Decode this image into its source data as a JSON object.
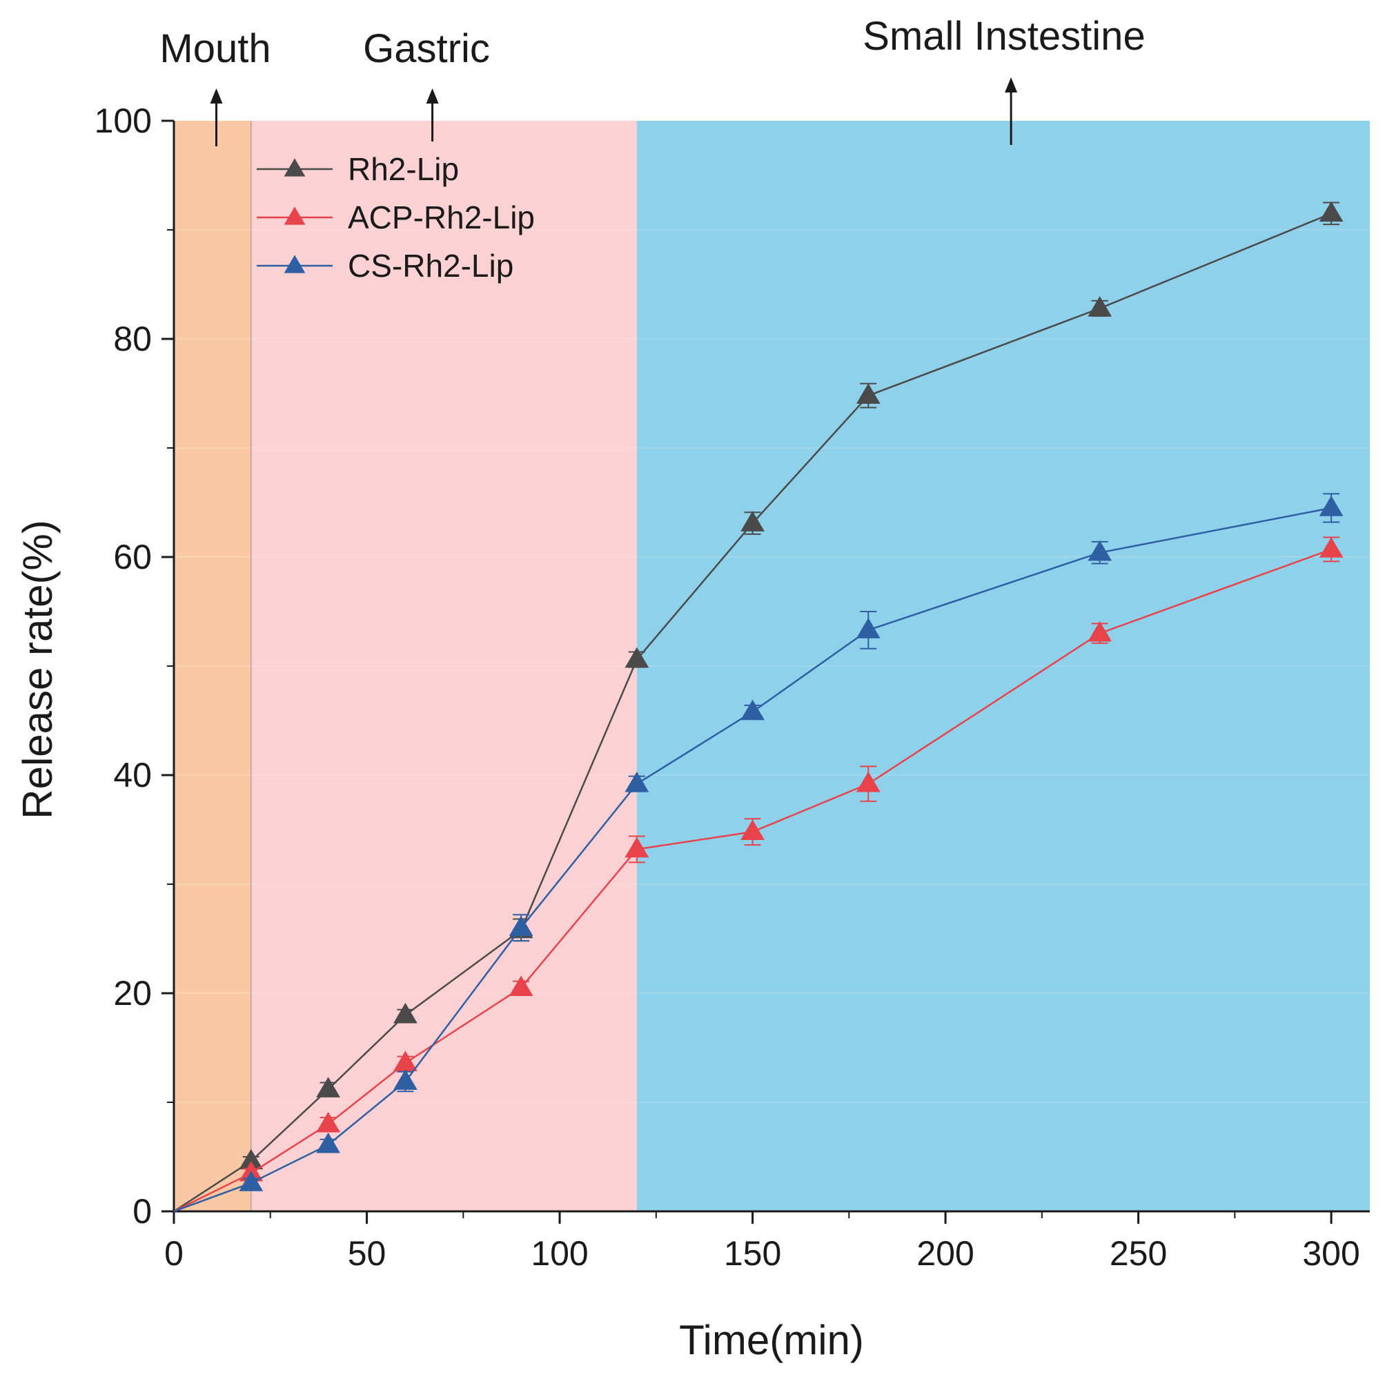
{
  "chart_data": {
    "type": "line",
    "title": "",
    "xlabel": "Time(min)",
    "ylabel": "Release rate(%)",
    "xlim": [
      0,
      310
    ],
    "ylim": [
      0,
      100
    ],
    "xticks": [
      0,
      50,
      100,
      150,
      200,
      250,
      300
    ],
    "yticks": [
      0,
      20,
      40,
      60,
      80,
      100
    ],
    "legend_position": "top-left",
    "regions": [
      {
        "label": "Mouth",
        "x_start": 0,
        "x_end": 20,
        "color": "#fbc8a5",
        "arrow_x": 11
      },
      {
        "label": "Gastric",
        "x_start": 20,
        "x_end": 120,
        "color": "#fbd1d3",
        "arrow_x": 67
      },
      {
        "label": "Small Instestine",
        "x_start": 120,
        "x_end": 310,
        "color": "#8fd0ea",
        "arrow_x": 217
      }
    ],
    "series": [
      {
        "name": "Rh2-Lip",
        "color": "#4a4a4a",
        "x": [
          0,
          20,
          40,
          60,
          90,
          120,
          150,
          180,
          240,
          300
        ],
        "y": [
          0,
          4.6,
          11.2,
          18.0,
          25.8,
          50.6,
          63.1,
          74.8,
          82.8,
          91.5
        ],
        "error": [
          0,
          0.4,
          0.6,
          0.5,
          1.0,
          0.7,
          1.0,
          1.1,
          0.7,
          1.0
        ]
      },
      {
        "name": "ACP-Rh2-Lip",
        "color": "#e8434a",
        "x": [
          0,
          20,
          40,
          60,
          90,
          120,
          150,
          180,
          240,
          300
        ],
        "y": [
          0,
          3.5,
          8.0,
          13.6,
          20.5,
          33.2,
          34.8,
          39.2,
          53.0,
          60.7
        ],
        "error": [
          0,
          0.4,
          0.6,
          0.6,
          0.6,
          1.2,
          1.2,
          1.6,
          0.9,
          1.1
        ]
      },
      {
        "name": "CS-Rh2-Lip",
        "color": "#2f5fa3",
        "x": [
          0,
          20,
          40,
          60,
          90,
          120,
          150,
          180,
          240,
          300
        ],
        "y": [
          0,
          2.6,
          6.1,
          11.9,
          26.0,
          39.2,
          45.8,
          53.3,
          60.4,
          64.5
        ],
        "error": [
          0,
          0.4,
          0.5,
          0.9,
          1.2,
          0.7,
          0.6,
          1.7,
          1.0,
          1.3
        ]
      }
    ]
  }
}
